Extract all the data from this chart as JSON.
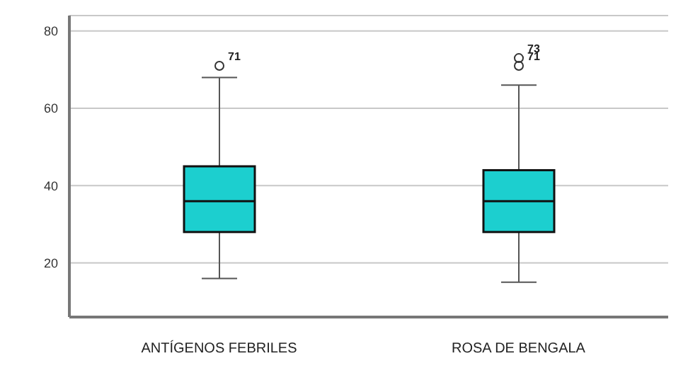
{
  "chart_data": {
    "type": "box",
    "categories": [
      "ANTÍGENOS  FEBRILES",
      "ROSA DE BENGALA"
    ],
    "boxes": [
      {
        "low": 16,
        "q1": 28,
        "median": 36,
        "q3": 45,
        "high": 68,
        "outliers": [
          71
        ]
      },
      {
        "low": 15,
        "q1": 28,
        "median": 36,
        "q3": 44,
        "high": 66,
        "outliers": [
          71,
          73
        ]
      }
    ],
    "color": "#1ccfcf",
    "ylim": [
      6,
      84
    ],
    "yticks": [
      20,
      40,
      60,
      80
    ],
    "grid": "y",
    "annotations": [
      "71",
      "71",
      "73"
    ]
  }
}
